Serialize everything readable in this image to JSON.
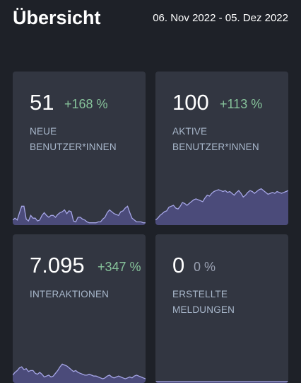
{
  "header": {
    "title": "Übersicht",
    "date_range": "06. Nov 2022 - 05. Dez 2022"
  },
  "cards": [
    {
      "value": "51",
      "change": "+168 %",
      "label_line1": "NEUE",
      "label_line2": "BENUTZER*INNEN",
      "sparkline": [
        4,
        6,
        4,
        12,
        19,
        19,
        5,
        3,
        9,
        6,
        6,
        3,
        4,
        9,
        12,
        9,
        7,
        9,
        9,
        7,
        10,
        12,
        13,
        15,
        11,
        14,
        13,
        3,
        2,
        7,
        7,
        5,
        4,
        2,
        1,
        1,
        1,
        1,
        2,
        2,
        5,
        7,
        12,
        15,
        13,
        11,
        10,
        9,
        13,
        14,
        17,
        19,
        12,
        6,
        4,
        2,
        2,
        2,
        1,
        1
      ]
    },
    {
      "value": "100",
      "change": "+113 %",
      "label_line1": "AKTIVE",
      "label_line2": "BENUTZER*INNEN",
      "sparkline": [
        4,
        6,
        9,
        11,
        13,
        14,
        18,
        19,
        20,
        17,
        16,
        19,
        23,
        22,
        20,
        22,
        24,
        26,
        27,
        26,
        25,
        24,
        28,
        31,
        30,
        33,
        35,
        36,
        37,
        36,
        35,
        36,
        34,
        35,
        33,
        31,
        34,
        36,
        33,
        29,
        31,
        34,
        36,
        35,
        33,
        35,
        37,
        38,
        36,
        34,
        32,
        33,
        34,
        33,
        35,
        34,
        33,
        34,
        35,
        36
      ]
    },
    {
      "value": "7.095",
      "change": "+347 %",
      "label_line1": "INTERAKTIONEN",
      "label_line2": "",
      "sparkline": [
        7,
        10,
        12,
        15,
        16,
        13,
        14,
        11,
        12,
        12,
        9,
        8,
        10,
        8,
        5,
        6,
        7,
        5,
        6,
        9,
        12,
        16,
        19,
        18,
        17,
        15,
        13,
        11,
        12,
        10,
        9,
        8,
        7,
        7,
        8,
        7,
        6,
        6,
        5,
        4,
        3,
        4,
        6,
        7,
        5,
        4,
        5,
        6,
        5,
        4,
        3,
        4,
        5,
        4,
        6,
        7,
        6,
        5,
        4,
        3
      ]
    },
    {
      "value": "0",
      "change": "0 %",
      "label_line1": "ERSTELLTE",
      "label_line2": "MELDUNGEN",
      "sparkline": [
        0,
        0,
        0,
        0,
        0,
        0,
        0,
        0,
        0,
        0,
        0,
        0,
        0,
        0,
        0,
        0,
        0,
        0,
        0,
        0,
        0,
        0,
        0,
        0,
        0,
        0,
        0,
        0,
        0,
        0,
        0,
        0,
        0,
        0,
        0,
        0,
        0,
        0,
        0,
        0,
        0,
        0,
        0,
        0,
        0,
        0,
        0,
        0,
        0,
        0,
        0,
        0,
        0,
        0,
        0,
        0,
        0,
        0,
        0,
        0
      ]
    }
  ],
  "colors": {
    "background": "#1e2128",
    "card": "#323641",
    "positive_change": "#86c29a",
    "neutral_change": "#9aa1b2",
    "label": "#a9b8cc",
    "sparkline_fill": "#4b4b7a",
    "sparkline_stroke": "#a6a6e6"
  }
}
